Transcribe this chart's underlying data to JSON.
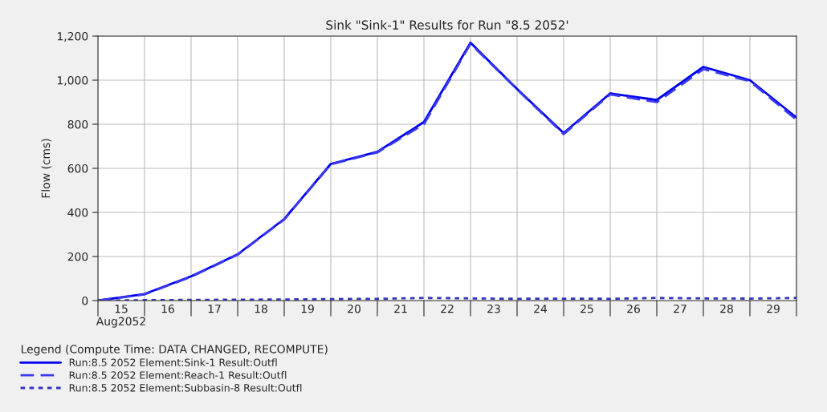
{
  "chart_data": {
    "type": "line",
    "title": "Sink \"Sink-1\" Results for Run \"8.5 2052'",
    "ylabel": "Flow (cms)",
    "legend_title": "Legend (Compute Time: DATA CHANGED, RECOMPUTE)",
    "x": [
      "2052-08-15",
      "2052-08-16",
      "2052-08-17",
      "2052-08-18",
      "2052-08-19",
      "2052-08-20",
      "2052-08-21",
      "2052-08-22",
      "2052-08-23",
      "2052-08-24",
      "2052-08-25",
      "2052-08-26",
      "2052-08-27",
      "2052-08-28",
      "2052-08-29",
      "2052-08-30"
    ],
    "series": [
      {
        "name": "Run:8.5 2052 Element:Sink-1 Result:Outfl",
        "color": "#0000ee",
        "line_style": "solid",
        "values": [
          0,
          30,
          110,
          210,
          370,
          620,
          675,
          810,
          1170,
          960,
          760,
          940,
          910,
          1060,
          1000,
          830
        ]
      },
      {
        "name": "Run:8.5 2052 Element:Reach-1 Result:Outfl",
        "color": "#3a3aee",
        "line_style": "dashed",
        "values": [
          0,
          28,
          108,
          208,
          368,
          618,
          672,
          800,
          1165,
          958,
          755,
          935,
          900,
          1050,
          995,
          820
        ]
      },
      {
        "name": "Run:8.5 2052 Element:Subbasin-8 Result:Outfl",
        "color": "#3333bb",
        "line_style": "dotted",
        "values": [
          0,
          2,
          3,
          4,
          5,
          7,
          8,
          12,
          10,
          8,
          9,
          8,
          12,
          10,
          9,
          12
        ]
      }
    ],
    "xlim": [
      "2052-08-15",
      "2052-08-30"
    ],
    "xticks": [
      {
        "value": "2052-08-15",
        "label": null
      },
      {
        "value": "2052-08-15T12:00",
        "label": "15\nAug2052"
      },
      {
        "value": "2052-08-16",
        "label": null
      },
      {
        "value": "2052-08-16T12:00",
        "label": "16"
      },
      {
        "value": "2052-08-17",
        "label": null
      },
      {
        "value": "2052-08-17T12:00",
        "label": "17"
      },
      {
        "value": "2052-08-18",
        "label": null
      },
      {
        "value": "2052-08-18T12:00",
        "label": "18"
      },
      {
        "value": "2052-08-19",
        "label": null
      },
      {
        "value": "2052-08-19T12:00",
        "label": "19"
      },
      {
        "value": "2052-08-20",
        "label": null
      },
      {
        "value": "2052-08-20T12:00",
        "label": "20"
      },
      {
        "value": "2052-08-21",
        "label": null
      },
      {
        "value": "2052-08-21T12:00",
        "label": "21"
      },
      {
        "value": "2052-08-22",
        "label": null
      },
      {
        "value": "2052-08-22T12:00",
        "label": "22"
      },
      {
        "value": "2052-08-23",
        "label": null
      },
      {
        "value": "2052-08-23T12:00",
        "label": "23"
      },
      {
        "value": "2052-08-24",
        "label": null
      },
      {
        "value": "2052-08-24T12:00",
        "label": "24"
      },
      {
        "value": "2052-08-25",
        "label": null
      },
      {
        "value": "2052-08-25T12:00",
        "label": "25"
      },
      {
        "value": "2052-08-26",
        "label": null
      },
      {
        "value": "2052-08-26T12:00",
        "label": "26"
      },
      {
        "value": "2052-08-27",
        "label": null
      },
      {
        "value": "2052-08-27T12:00",
        "label": "27"
      },
      {
        "value": "2052-08-28",
        "label": null
      },
      {
        "value": "2052-08-28T12:00",
        "label": "28"
      },
      {
        "value": "2052-08-29",
        "label": null
      },
      {
        "value": "2052-08-29T12:00",
        "label": "29"
      },
      {
        "value": "2052-08-30",
        "label": null
      }
    ],
    "ylim": [
      0,
      1200
    ],
    "yticks": [
      {
        "value": 0,
        "label": "0"
      },
      {
        "value": 200,
        "label": "200"
      },
      {
        "value": 400,
        "label": "400"
      },
      {
        "value": 600,
        "label": "600"
      },
      {
        "value": 800,
        "label": "800"
      },
      {
        "value": 1000,
        "label": "1,000"
      },
      {
        "value": 1200,
        "label": "1,200"
      }
    ],
    "grid": true,
    "legend": "bottom"
  }
}
